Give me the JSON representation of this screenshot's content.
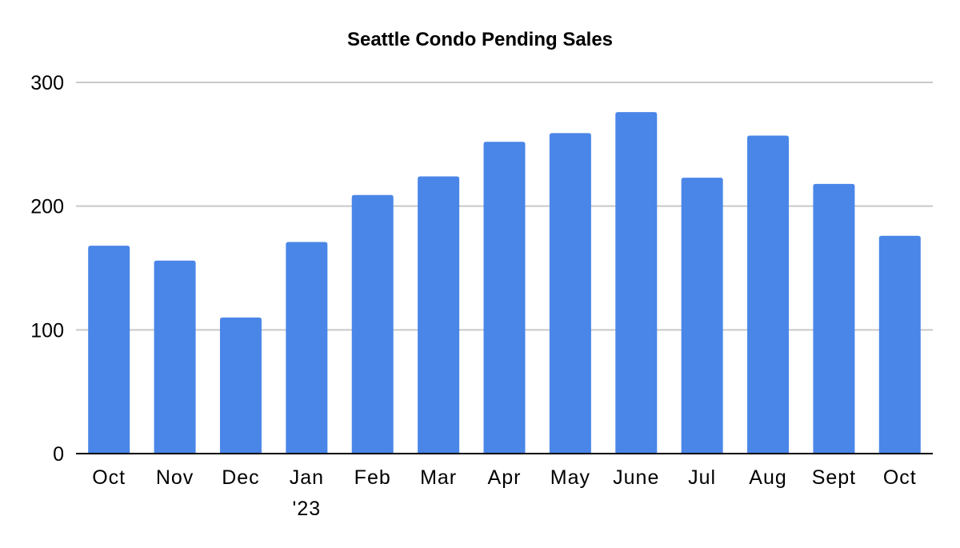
{
  "chart_data": {
    "type": "bar",
    "title": "Seattle Condo Pending Sales",
    "xlabel": "",
    "ylabel": "",
    "categories": [
      [
        "Oct"
      ],
      [
        "Nov"
      ],
      [
        "Dec"
      ],
      [
        "Jan",
        "'23"
      ],
      [
        "Feb"
      ],
      [
        "Mar"
      ],
      [
        "Apr"
      ],
      [
        "May"
      ],
      [
        "June"
      ],
      [
        "Jul"
      ],
      [
        "Aug"
      ],
      [
        "Sept"
      ],
      [
        "Oct"
      ]
    ],
    "values": [
      168,
      156,
      110,
      171,
      209,
      224,
      252,
      259,
      276,
      223,
      257,
      218,
      176
    ],
    "ylim": [
      0,
      300
    ],
    "yticks": [
      "0",
      "100",
      "200",
      "300"
    ],
    "ytick_values": [
      0,
      100,
      200,
      300
    ],
    "grid": true,
    "legend": "none",
    "colors": {
      "bar": "#4a86e8",
      "grid": "#c8c8c8",
      "axis": "#000000",
      "text": "#000000"
    }
  }
}
